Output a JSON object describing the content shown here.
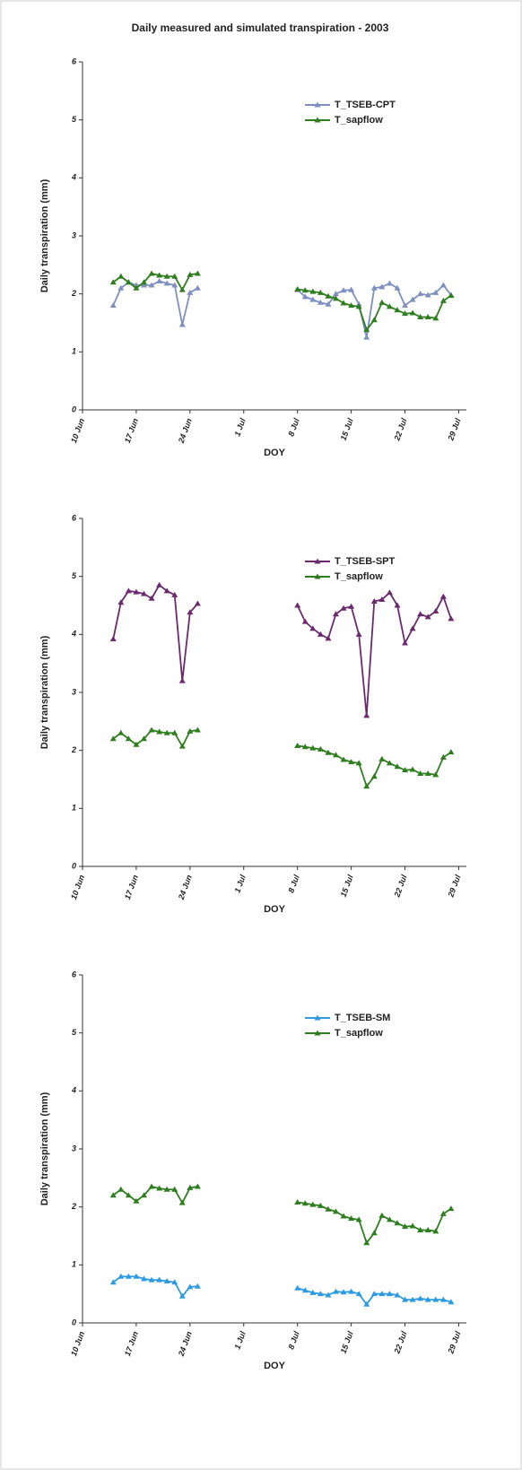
{
  "title": "Daily measured and simulated transpiration - 2003",
  "chart_data": [
    {
      "type": "line",
      "xlabel": "DOY",
      "ylabel": "Daily transpiration (mm)",
      "legend": "upper right",
      "xlim": [
        161,
        211
      ],
      "ylim": [
        0,
        6
      ],
      "yticks": [
        0,
        1,
        2,
        3,
        4,
        5,
        6
      ],
      "xticks": [
        {
          "value": 161,
          "label": "10 Jun"
        },
        {
          "value": 168,
          "label": "17 Jun"
        },
        {
          "value": 175,
          "label": "24 Jun"
        },
        {
          "value": 182,
          "label": "1 Jul"
        },
        {
          "value": 189,
          "label": "8 Jul"
        },
        {
          "value": 196,
          "label": "15 Jul"
        },
        {
          "value": 203,
          "label": "22 Jul"
        },
        {
          "value": 210,
          "label": "29 Jul"
        }
      ],
      "x": [
        165,
        166,
        167,
        168,
        169,
        170,
        171,
        172,
        173,
        174,
        175,
        176,
        177,
        178,
        179,
        180,
        181,
        182,
        183,
        184,
        185,
        186,
        187,
        188,
        189,
        190,
        191,
        192,
        193,
        194,
        195,
        196,
        197,
        198,
        199,
        200,
        201,
        202,
        203,
        204,
        205,
        206,
        207,
        208,
        209
      ],
      "series": [
        {
          "name": "T_TSEB-CPT",
          "color": "#7f8fc0",
          "values": [
            1.8,
            2.1,
            2.2,
            2.15,
            2.15,
            2.15,
            2.22,
            2.18,
            2.15,
            1.47,
            2.02,
            2.1,
            null,
            null,
            null,
            null,
            null,
            null,
            null,
            null,
            null,
            null,
            null,
            null,
            2.07,
            1.95,
            1.9,
            1.85,
            1.82,
            2.0,
            2.06,
            2.07,
            1.82,
            1.25,
            2.1,
            2.12,
            2.18,
            2.1,
            1.8,
            1.9,
            2.0,
            1.98,
            2.02,
            2.15,
            1.98
          ]
        },
        {
          "name": "T_sapflow",
          "color": "#2e7d1e",
          "values": [
            2.2,
            2.3,
            2.2,
            2.1,
            2.2,
            2.35,
            2.32,
            2.3,
            2.3,
            2.07,
            2.33,
            2.35,
            null,
            null,
            null,
            null,
            null,
            null,
            null,
            null,
            null,
            null,
            null,
            null,
            2.08,
            2.06,
            2.04,
            2.02,
            1.96,
            1.92,
            1.84,
            1.8,
            1.78,
            1.38,
            1.55,
            1.85,
            1.78,
            1.72,
            1.66,
            1.67,
            1.6,
            1.6,
            1.58,
            1.88,
            1.97
          ]
        }
      ]
    },
    {
      "type": "line",
      "xlabel": "DOY",
      "ylabel": "Daily transpiration (mm)",
      "legend": "upper right",
      "xlim": [
        161,
        211
      ],
      "ylim": [
        0,
        6
      ],
      "yticks": [
        0,
        1,
        2,
        3,
        4,
        5,
        6
      ],
      "xticks": [
        {
          "value": 161,
          "label": "10 Jun"
        },
        {
          "value": 168,
          "label": "17 Jun"
        },
        {
          "value": 175,
          "label": "24 Jun"
        },
        {
          "value": 182,
          "label": "1 Jul"
        },
        {
          "value": 189,
          "label": "8 Jul"
        },
        {
          "value": 196,
          "label": "15 Jul"
        },
        {
          "value": 203,
          "label": "22 Jul"
        },
        {
          "value": 210,
          "label": "29 Jul"
        }
      ],
      "x": [
        165,
        166,
        167,
        168,
        169,
        170,
        171,
        172,
        173,
        174,
        175,
        176,
        177,
        178,
        179,
        180,
        181,
        182,
        183,
        184,
        185,
        186,
        187,
        188,
        189,
        190,
        191,
        192,
        193,
        194,
        195,
        196,
        197,
        198,
        199,
        200,
        201,
        202,
        203,
        204,
        205,
        206,
        207,
        208,
        209
      ],
      "series": [
        {
          "name": "T_TSEB-SPT",
          "color": "#6b2a6e",
          "values": [
            3.92,
            4.55,
            4.75,
            4.73,
            4.7,
            4.62,
            4.85,
            4.75,
            4.68,
            3.2,
            4.38,
            4.53,
            null,
            null,
            null,
            null,
            null,
            null,
            null,
            null,
            null,
            null,
            null,
            null,
            4.5,
            4.22,
            4.1,
            4.0,
            3.93,
            4.35,
            4.45,
            4.48,
            4.0,
            2.6,
            4.57,
            4.6,
            4.72,
            4.5,
            3.85,
            4.1,
            4.35,
            4.3,
            4.4,
            4.65,
            4.27
          ]
        },
        {
          "name": "T_sapflow",
          "color": "#2e7d1e",
          "values": [
            2.2,
            2.3,
            2.2,
            2.1,
            2.2,
            2.35,
            2.32,
            2.3,
            2.3,
            2.07,
            2.33,
            2.35,
            null,
            null,
            null,
            null,
            null,
            null,
            null,
            null,
            null,
            null,
            null,
            null,
            2.08,
            2.06,
            2.04,
            2.02,
            1.96,
            1.92,
            1.84,
            1.8,
            1.78,
            1.38,
            1.55,
            1.85,
            1.78,
            1.72,
            1.66,
            1.67,
            1.6,
            1.6,
            1.58,
            1.88,
            1.97
          ]
        }
      ]
    },
    {
      "type": "line",
      "xlabel": "DOY",
      "ylabel": "Daily transpiration (mm)",
      "legend": "upper right",
      "xlim": [
        161,
        211
      ],
      "ylim": [
        0,
        6
      ],
      "yticks": [
        0,
        1,
        2,
        3,
        4,
        5,
        6
      ],
      "xticks": [
        {
          "value": 161,
          "label": "10 Jun"
        },
        {
          "value": 168,
          "label": "17 Jun"
        },
        {
          "value": 175,
          "label": "24 Jun"
        },
        {
          "value": 182,
          "label": "1 Jul"
        },
        {
          "value": 189,
          "label": "8 Jul"
        },
        {
          "value": 196,
          "label": "15 Jul"
        },
        {
          "value": 203,
          "label": "22 Jul"
        },
        {
          "value": 210,
          "label": "29 Jul"
        }
      ],
      "x": [
        165,
        166,
        167,
        168,
        169,
        170,
        171,
        172,
        173,
        174,
        175,
        176,
        177,
        178,
        179,
        180,
        181,
        182,
        183,
        184,
        185,
        186,
        187,
        188,
        189,
        190,
        191,
        192,
        193,
        194,
        195,
        196,
        197,
        198,
        199,
        200,
        201,
        202,
        203,
        204,
        205,
        206,
        207,
        208,
        209
      ],
      "series": [
        {
          "name": "T_TSEB-SM",
          "color": "#2e9be0",
          "values": [
            0.7,
            0.8,
            0.8,
            0.8,
            0.76,
            0.74,
            0.74,
            0.72,
            0.7,
            0.46,
            0.62,
            0.63,
            null,
            null,
            null,
            null,
            null,
            null,
            null,
            null,
            null,
            null,
            null,
            null,
            0.6,
            0.56,
            0.52,
            0.5,
            0.48,
            0.54,
            0.53,
            0.54,
            0.5,
            0.32,
            0.5,
            0.5,
            0.5,
            0.48,
            0.4,
            0.4,
            0.42,
            0.4,
            0.4,
            0.4,
            0.36
          ]
        },
        {
          "name": "T_sapflow",
          "color": "#2e7d1e",
          "values": [
            2.2,
            2.3,
            2.2,
            2.1,
            2.2,
            2.35,
            2.32,
            2.3,
            2.3,
            2.07,
            2.33,
            2.35,
            null,
            null,
            null,
            null,
            null,
            null,
            null,
            null,
            null,
            null,
            null,
            null,
            2.08,
            2.06,
            2.04,
            2.02,
            1.96,
            1.92,
            1.84,
            1.8,
            1.78,
            1.38,
            1.55,
            1.85,
            1.78,
            1.72,
            1.66,
            1.67,
            1.6,
            1.6,
            1.58,
            1.88,
            1.97
          ]
        }
      ]
    }
  ]
}
